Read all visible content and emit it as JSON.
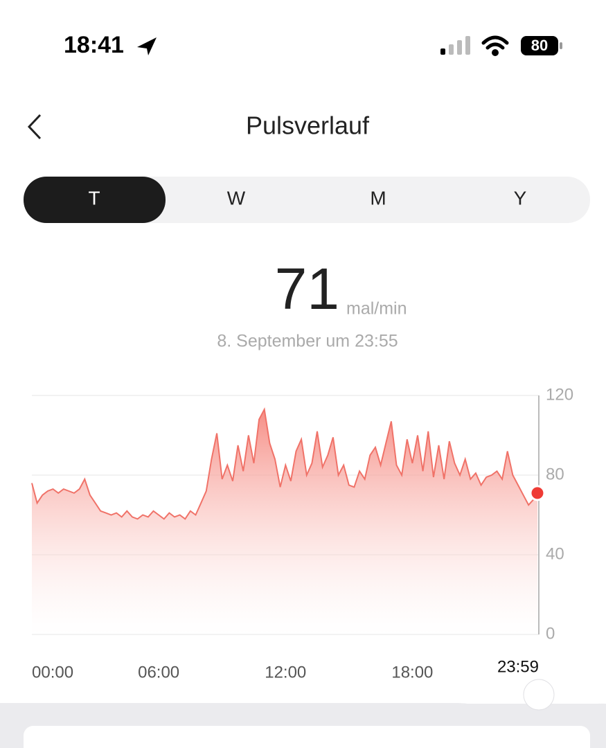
{
  "status_bar": {
    "time": "18:41",
    "battery": "80"
  },
  "header": {
    "title": "Pulsverlauf"
  },
  "tabs": [
    "T",
    "W",
    "M",
    "Y"
  ],
  "reading": {
    "value": "71",
    "unit": "mal/min",
    "timestamp": "8. September um 23:55"
  },
  "chart_data": {
    "type": "area",
    "color": "#f07268",
    "x": [
      0,
      15,
      30,
      45,
      60,
      75,
      90,
      105,
      120,
      135,
      150,
      165,
      180,
      195,
      210,
      225,
      240,
      255,
      270,
      285,
      300,
      315,
      330,
      345,
      360,
      375,
      390,
      405,
      420,
      435,
      450,
      465,
      480,
      495,
      510,
      525,
      540,
      555,
      570,
      585,
      600,
      615,
      630,
      645,
      660,
      675,
      690,
      705,
      720,
      735,
      750,
      765,
      780,
      795,
      810,
      825,
      840,
      855,
      870,
      885,
      900,
      915,
      930,
      945,
      960,
      975,
      990,
      1005,
      1020,
      1035,
      1050,
      1065,
      1080,
      1095,
      1110,
      1125,
      1140,
      1155,
      1170,
      1185,
      1200,
      1215,
      1230,
      1245,
      1260,
      1275,
      1290,
      1305,
      1320,
      1335,
      1350,
      1365,
      1380,
      1395,
      1410,
      1425,
      1435
    ],
    "values": [
      76,
      66,
      70,
      72,
      73,
      71,
      73,
      72,
      71,
      73,
      78,
      70,
      66,
      62,
      61,
      60,
      61,
      59,
      62,
      59,
      58,
      60,
      59,
      62,
      60,
      58,
      61,
      59,
      60,
      58,
      62,
      60,
      66,
      72,
      88,
      101,
      78,
      85,
      77,
      95,
      82,
      100,
      86,
      108,
      113,
      96,
      88,
      74,
      85,
      77,
      92,
      98,
      80,
      86,
      102,
      84,
      90,
      99,
      80,
      85,
      75,
      74,
      82,
      78,
      90,
      94,
      85,
      96,
      107,
      85,
      80,
      98,
      86,
      100,
      82,
      102,
      79,
      95,
      78,
      97,
      86,
      80,
      88,
      78,
      81,
      75,
      79,
      80,
      82,
      78,
      92,
      80,
      75,
      70,
      65,
      68,
      71
    ],
    "xlim": [
      0,
      1439
    ],
    "xticks": [
      {
        "value": 0,
        "label": "00:00"
      },
      {
        "value": 360,
        "label": "06:00"
      },
      {
        "value": 720,
        "label": "12:00"
      },
      {
        "value": 1080,
        "label": "18:00"
      }
    ],
    "slider": {
      "value": 1439,
      "label": "23:59"
    },
    "ylim": [
      0,
      120
    ],
    "yticks": [
      0,
      40,
      80,
      120
    ],
    "grid": true
  }
}
